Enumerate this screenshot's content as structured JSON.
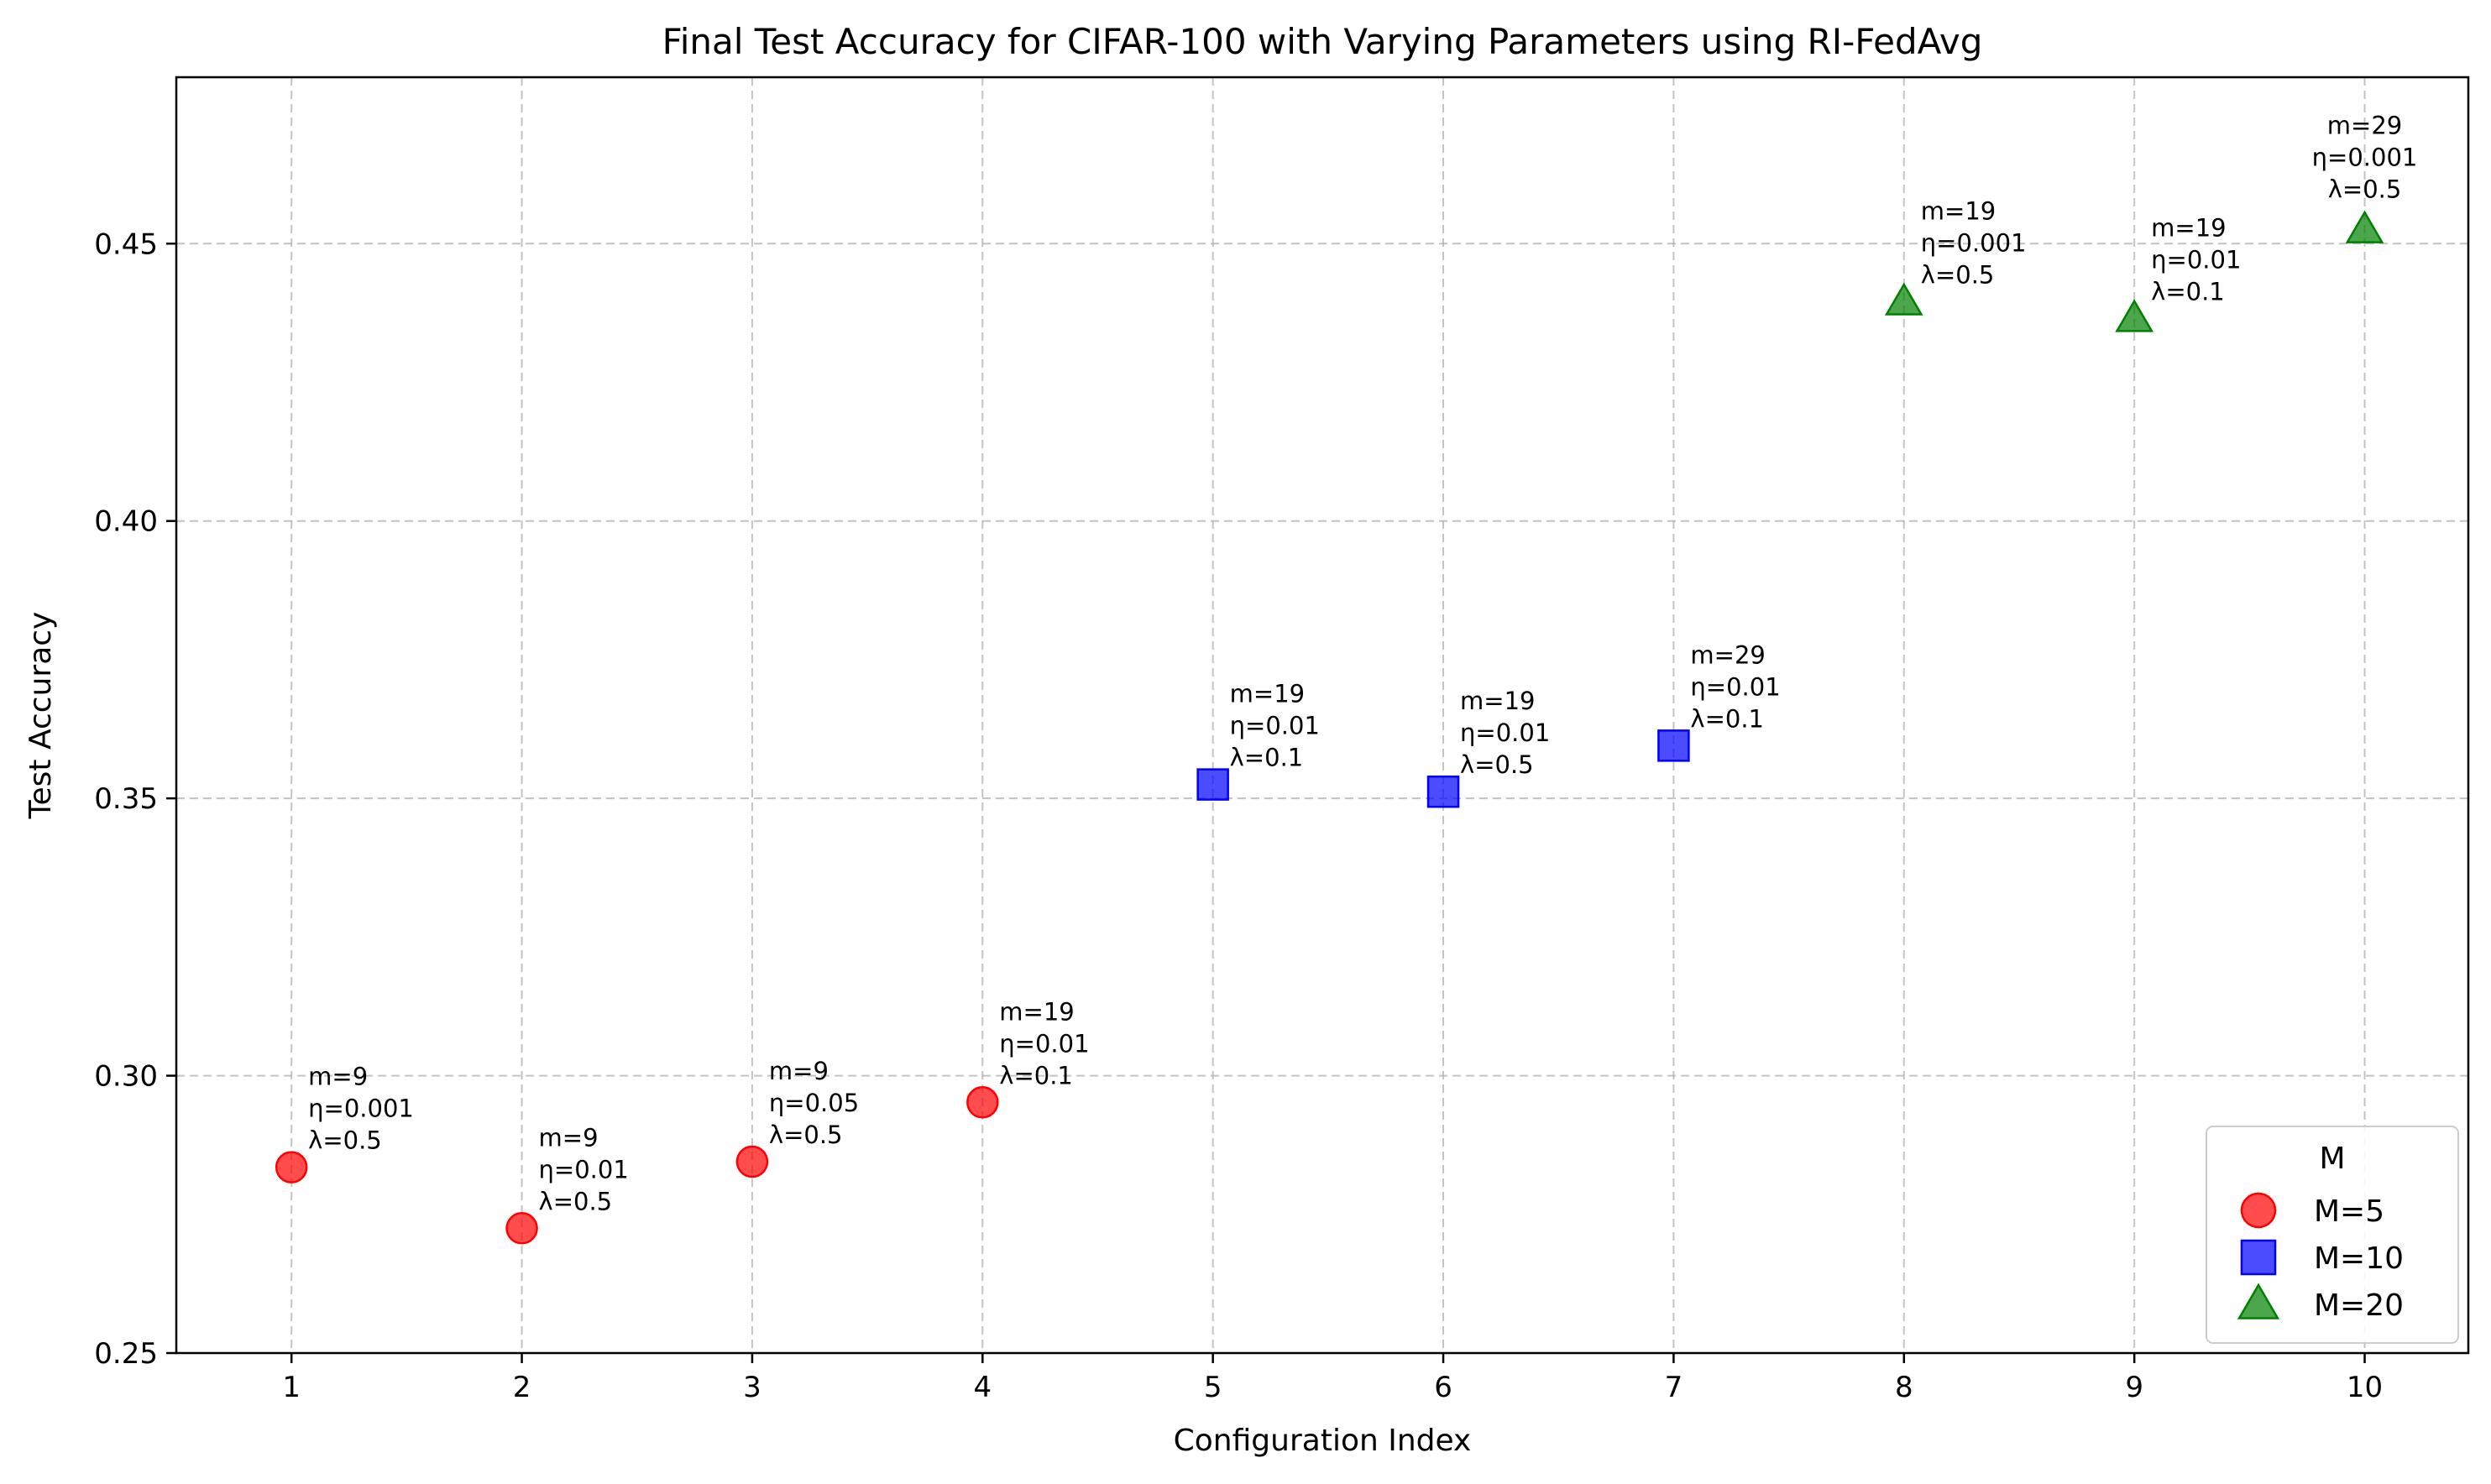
{
  "chart_data": {
    "type": "scatter",
    "title": "Final Test Accuracy for CIFAR-100 with Varying Parameters using RI-FedAvg",
    "xlabel": "Configuration Index",
    "ylabel": "Test Accuracy",
    "xlim": [
      0.5,
      10.45
    ],
    "ylim": [
      0.25,
      0.48
    ],
    "xticks": [
      1,
      2,
      3,
      4,
      5,
      6,
      7,
      8,
      9,
      10
    ],
    "xtick_labels": [
      "1",
      "2",
      "3",
      "4",
      "5",
      "6",
      "7",
      "8",
      "9",
      "10"
    ],
    "yticks": [
      0.25,
      0.3,
      0.35,
      0.4,
      0.45
    ],
    "ytick_labels": [
      "0.25",
      "0.30",
      "0.35",
      "0.40",
      "0.45"
    ],
    "grid": true,
    "legend": {
      "title": "M",
      "placement": "lower-right"
    },
    "series": [
      {
        "name": "M=5",
        "marker": "circle",
        "color": "#ff0000",
        "points": [
          {
            "x": 1,
            "y": 0.2835,
            "label": [
              "m=9",
              "η=0.001",
              "λ=0.5"
            ]
          },
          {
            "x": 2,
            "y": 0.2725,
            "label": [
              "m=9",
              "η=0.01",
              "λ=0.5"
            ]
          },
          {
            "x": 3,
            "y": 0.2845,
            "label": [
              "m=9",
              "η=0.05",
              "λ=0.5"
            ]
          },
          {
            "x": 4,
            "y": 0.2952,
            "label": [
              "m=19",
              "η=0.01",
              "λ=0.1"
            ]
          }
        ]
      },
      {
        "name": "M=10",
        "marker": "square",
        "color": "#0000ff",
        "points": [
          {
            "x": 5,
            "y": 0.3525,
            "label": [
              "m=19",
              "η=0.01",
              "λ=0.1"
            ]
          },
          {
            "x": 6,
            "y": 0.3512,
            "label": [
              "m=19",
              "η=0.01",
              "λ=0.5"
            ]
          },
          {
            "x": 7,
            "y": 0.3595,
            "label": [
              "m=29",
              "η=0.01",
              "λ=0.1"
            ]
          }
        ]
      },
      {
        "name": "M=20",
        "marker": "triangle",
        "color": "#008000",
        "points": [
          {
            "x": 8,
            "y": 0.4395,
            "label": [
              "m=19",
              "η=0.001",
              "λ=0.5"
            ]
          },
          {
            "x": 9,
            "y": 0.4365,
            "label": [
              "m=19",
              "η=0.01",
              "λ=0.1"
            ]
          },
          {
            "x": 10,
            "y": 0.4525,
            "label": [
              "m=29",
              "η=0.001",
              "λ=0.5"
            ],
            "label_position": "above"
          }
        ]
      }
    ]
  }
}
